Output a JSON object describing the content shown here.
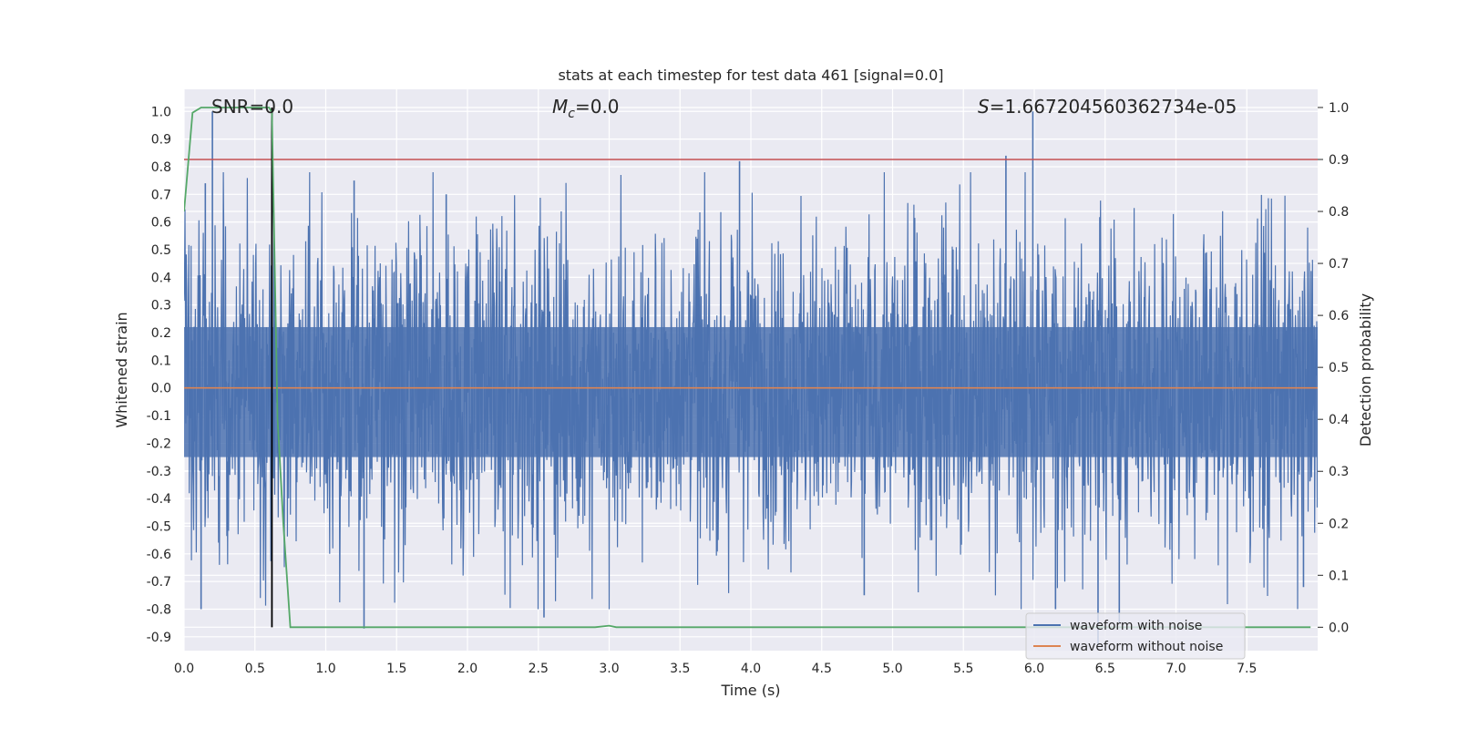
{
  "chart_data": {
    "type": "line",
    "title": "stats at each timestep for test data 461 [signal=0.0]",
    "xlabel": "Time (s)",
    "ylabel": "Whitened strain",
    "y2label": "Detection probability",
    "xlim": [
      0.0,
      8.0
    ],
    "ylim": [
      -0.95,
      1.08
    ],
    "y2lim": [
      -0.045,
      1.035
    ],
    "xticks": [
      "0.0",
      "0.5",
      "1.0",
      "1.5",
      "2.0",
      "2.5",
      "3.0",
      "3.5",
      "4.0",
      "4.5",
      "5.0",
      "5.5",
      "6.0",
      "6.5",
      "7.0",
      "7.5"
    ],
    "xtick_values": [
      0,
      0.5,
      1,
      1.5,
      2,
      2.5,
      3,
      3.5,
      4,
      4.5,
      5,
      5.5,
      6,
      6.5,
      7,
      7.5
    ],
    "yticks": [
      "1.0",
      "0.9",
      "0.8",
      "0.7",
      "0.6",
      "0.5",
      "0.4",
      "0.3",
      "0.2",
      "0.1",
      "0.0",
      "-0.1",
      "-0.2",
      "-0.3",
      "-0.4",
      "-0.5",
      "-0.6",
      "-0.7",
      "-0.8",
      "-0.9"
    ],
    "ytick_values": [
      1,
      0.9,
      0.8,
      0.7,
      0.6,
      0.5,
      0.4,
      0.3,
      0.2,
      0.1,
      0,
      -0.1,
      -0.2,
      -0.3,
      -0.4,
      -0.5,
      -0.6,
      -0.7,
      -0.8,
      -0.9
    ],
    "y2ticks": [
      "1.0",
      "0.9",
      "0.8",
      "0.7",
      "0.6",
      "0.5",
      "0.4",
      "0.3",
      "0.2",
      "0.1",
      "0.0"
    ],
    "y2tick_values": [
      1,
      0.9,
      0.8,
      0.7,
      0.6,
      0.5,
      0.4,
      0.3,
      0.2,
      0.1,
      0
    ],
    "annotations": {
      "snr": "SNR=0.0",
      "mc_symbol": "M",
      "mc_sub": "c",
      "mc_value": "=0.0",
      "s_symbol": "S",
      "s_value": "=1.667204560362734e-05"
    },
    "legend": {
      "position": "lower-right",
      "entries": [
        "waveform with noise",
        "waveform without noise"
      ]
    },
    "series": [
      {
        "name": "waveform with noise",
        "color": "#4c72b0",
        "description": "dense noise, roughly within -0.55..0.55 with spikes",
        "spikes": [
          [
            0.2,
            1.0
          ],
          [
            0.15,
            0.74
          ],
          [
            0.62,
            0.9
          ],
          [
            1.2,
            0.75
          ],
          [
            1.85,
            0.7
          ],
          [
            3.92,
            0.82
          ],
          [
            5.8,
            0.84
          ],
          [
            5.99,
            1.0
          ],
          [
            0.12,
            -0.8
          ],
          [
            1.27,
            -0.87
          ],
          [
            2.54,
            -0.83
          ],
          [
            4.8,
            -0.75
          ],
          [
            6.15,
            -0.8
          ],
          [
            6.45,
            -0.93
          ],
          [
            6.6,
            -0.85
          ],
          [
            7.9,
            -0.72
          ]
        ]
      },
      {
        "name": "waveform without noise",
        "color": "#dd8452",
        "x": [
          0.0,
          8.0
        ],
        "y": [
          0.0,
          0.0
        ]
      },
      {
        "name": "detection probability",
        "color": "#55a868",
        "axis": "right",
        "x": [
          0.0,
          0.06,
          0.12,
          0.2,
          0.3,
          0.4,
          0.5,
          0.6,
          0.62,
          0.66,
          0.7,
          0.75,
          0.8,
          1.0,
          2.9,
          3.0,
          3.05,
          5.0,
          7.95
        ],
        "y": [
          0.8,
          0.99,
          1.0,
          1.0,
          1.0,
          1.0,
          1.0,
          1.0,
          0.99,
          0.4,
          0.2,
          0.0,
          0.0,
          0.0,
          0.0,
          0.003,
          0.0,
          0.0,
          0.0
        ]
      }
    ],
    "threshold_line": {
      "axis": "right",
      "y": 0.9,
      "color": "#c44e52"
    },
    "vertical_line": {
      "x": 0.62,
      "color": "#000000",
      "from_y2": 0.0,
      "to_y2": 1.0
    }
  }
}
